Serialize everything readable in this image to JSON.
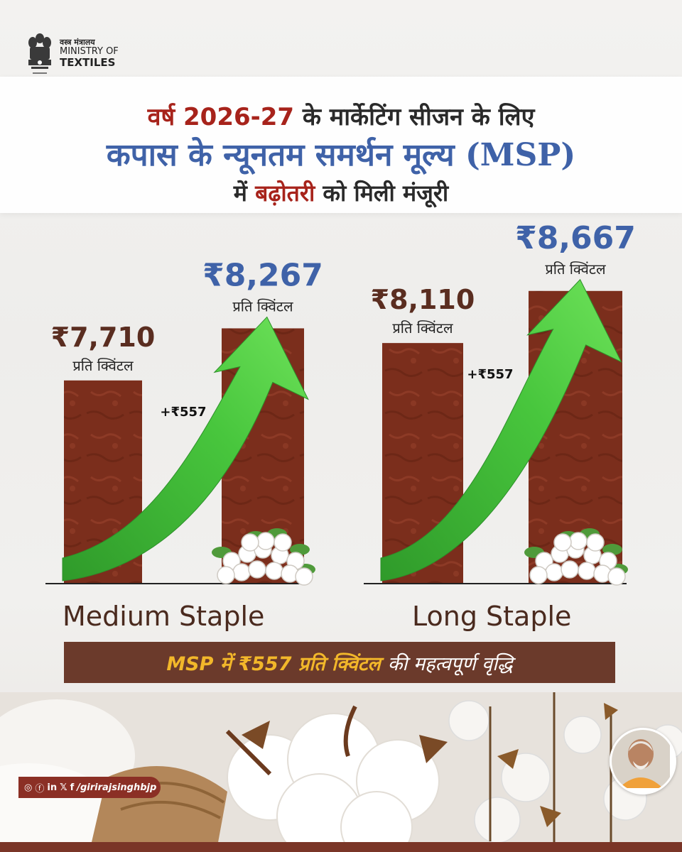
{
  "logo": {
    "ministry_hindi": "वस्त्र मंत्रालय",
    "ministry_line1": "MINISTRY OF",
    "ministry_line2": "TEXTILES"
  },
  "headline": {
    "line1_highlight": "वर्ष 2026-27",
    "line1_rest": "के मार्केटिंग सीजन के लिए",
    "line2": "कपास के न्यूनतम समर्थन मूल्य (MSP)",
    "line3_pre": "में",
    "line3_highlight": "बढ़ोतरी",
    "line3_post": "को मिली मंजूरी"
  },
  "chart_data": {
    "type": "bar",
    "categories": [
      "Medium Staple",
      "Long Staple"
    ],
    "unit_label": "प्रति क्विंटल",
    "series": [
      {
        "values": [
          7710,
          8110
        ],
        "labels": [
          "₹7,710",
          "₹8,110"
        ]
      },
      {
        "values": [
          8267,
          8667
        ],
        "labels": [
          "₹8,267",
          "₹8,667"
        ]
      }
    ],
    "increase_labels": [
      "+₹557",
      "+₹557"
    ],
    "title": "",
    "xlabel": "",
    "ylabel": "",
    "colors": {
      "bar": "#7b2e1c",
      "arrow": "#3fbe3a",
      "value_old": "#5a2d20",
      "value_new": "#3f62a8"
    }
  },
  "banner": {
    "bold_part": "MSP में ₹557 प्रति क्विंटल",
    "rest": "की महत्वपूर्ण वृद्धि"
  },
  "social": {
    "handle": "/girirajsinghbjp",
    "icons": [
      "facebook-icon",
      "instagram-icon",
      "linkedin-icon",
      "x-icon",
      "facebook-f-icon"
    ]
  }
}
